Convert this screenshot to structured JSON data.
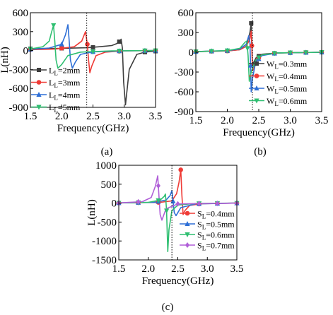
{
  "panel_labels": [
    "(a)",
    "(b)",
    "(c)"
  ],
  "chart_data": [
    {
      "type": "line",
      "panel": "(a)",
      "xlabel": "Frequency(GHz)",
      "ylabel": "L(nH)",
      "xlim": [
        1.5,
        3.5
      ],
      "ylim": [
        -900,
        600
      ],
      "xticks": [
        1.5,
        2.0,
        2.5,
        3.0,
        3.5
      ],
      "yticks": [
        600,
        300,
        0,
        -300,
        -600,
        -900
      ],
      "xtick_labels": [
        "1.5",
        "2.0",
        "2.5",
        "3.0",
        "3.5"
      ],
      "ytick_labels": [
        "600",
        "300",
        "0",
        "-300",
        "-600",
        "-900"
      ],
      "reference_line_x": 2.4,
      "grid": false,
      "legend_position": "bottom-left",
      "series": [
        {
          "name": "L=2mm",
          "name_main": "L",
          "name_sub": "L",
          "name_rest": "=2mm",
          "color": "#3d3d3d",
          "marker": "square",
          "x": [
            1.5,
            2.0,
            2.4,
            2.6,
            2.8,
            2.88,
            2.93,
            2.95,
            2.97,
            2.99,
            3.02,
            3.08,
            3.2,
            3.35,
            3.5
          ],
          "y": [
            30,
            35,
            45,
            60,
            80,
            110,
            150,
            180,
            40,
            -500,
            -860,
            -300,
            -60,
            -20,
            -10
          ],
          "markers_x": [
            1.5,
            2.0,
            2.5,
            2.92,
            3.33,
            3.5
          ]
        },
        {
          "name": "L=3mm",
          "name_main": "L",
          "name_sub": "L",
          "name_rest": "=3mm",
          "color": "#ef3b36",
          "marker": "circle",
          "x": [
            1.5,
            1.9,
            2.2,
            2.32,
            2.38,
            2.41,
            2.43,
            2.45,
            2.48,
            2.55,
            2.7,
            3.0,
            3.5
          ],
          "y": [
            15,
            25,
            60,
            150,
            300,
            100,
            -150,
            -350,
            -250,
            -80,
            -25,
            -5,
            0
          ],
          "markers_x": [
            1.5,
            2.0,
            2.41,
            2.92,
            3.33,
            3.5
          ]
        },
        {
          "name": "L=4mm",
          "name_main": "L",
          "name_sub": "L",
          "name_rest": "=4mm",
          "color": "#2e6fd6",
          "marker": "triangle",
          "x": [
            1.5,
            1.8,
            2.0,
            2.06,
            2.1,
            2.12,
            2.14,
            2.17,
            2.22,
            2.3,
            2.5,
            3.0,
            3.5
          ],
          "y": [
            20,
            40,
            100,
            250,
            410,
            150,
            -150,
            -280,
            -180,
            -60,
            -20,
            -5,
            0
          ],
          "markers_x": [
            1.5,
            2.0,
            2.5,
            2.92,
            3.33,
            3.5
          ]
        },
        {
          "name": "L=5mm",
          "name_main": "L",
          "name_sub": "L",
          "name_rest": "=5mm",
          "color": "#2fbf71",
          "marker": "triangle-down",
          "x": [
            1.5,
            1.7,
            1.8,
            1.84,
            1.87,
            1.89,
            1.91,
            1.94,
            2.0,
            2.1,
            2.3,
            2.8,
            3.5
          ],
          "y": [
            25,
            60,
            150,
            300,
            400,
            150,
            -150,
            -280,
            -220,
            -80,
            -25,
            -5,
            0
          ],
          "markers_x": [
            1.5,
            1.87,
            2.5,
            2.92,
            3.33,
            3.5
          ]
        }
      ]
    },
    {
      "type": "line",
      "panel": "(b)",
      "xlabel": "Frequency(GHz)",
      "ylabel": "",
      "xlim": [
        1.5,
        3.5
      ],
      "ylim": [
        -900,
        600
      ],
      "xticks": [
        1.5,
        2.0,
        2.5,
        3.0,
        3.5
      ],
      "yticks": [
        600,
        300,
        0,
        -300,
        -600,
        -900
      ],
      "xtick_labels": [
        "1.5",
        "2.0",
        "2.5",
        "3.0",
        "3.5"
      ],
      "ytick_labels": [
        "600",
        "300",
        "0",
        "-300",
        "-600",
        "-900"
      ],
      "reference_line_x": 2.4,
      "grid": false,
      "legend_position": "bottom-right",
      "series": [
        {
          "name": "W=0.3mm",
          "name_main": "W",
          "name_sub": "L",
          "name_rest": "=0.3mm",
          "color": "#3d3d3d",
          "marker": "square",
          "x": [
            1.5,
            2.0,
            2.2,
            2.3,
            2.36,
            2.38,
            2.39,
            2.4,
            2.42,
            2.46,
            2.55,
            2.8,
            3.5
          ],
          "y": [
            10,
            20,
            40,
            90,
            300,
            440,
            100,
            -200,
            -150,
            -80,
            -30,
            -10,
            0
          ],
          "markers_x": [
            1.5,
            1.75,
            2.0,
            2.38,
            2.5,
            2.75,
            3.0,
            3.25,
            3.5
          ]
        },
        {
          "name": "W=0.4mm",
          "name_main": "W",
          "name_sub": "L",
          "name_rest": "=0.4mm",
          "color": "#ef3b36",
          "marker": "circle",
          "x": [
            1.5,
            2.0,
            2.2,
            2.3,
            2.36,
            2.38,
            2.39,
            2.4,
            2.42,
            2.46,
            2.55,
            2.8,
            3.5
          ],
          "y": [
            10,
            20,
            40,
            90,
            200,
            320,
            100,
            -280,
            -250,
            -120,
            -40,
            -10,
            0
          ],
          "markers_x": [
            1.5,
            1.75,
            2.0,
            2.39,
            2.5,
            2.75,
            3.0,
            3.25,
            3.5
          ]
        },
        {
          "name": "W=0.5mm",
          "name_main": "W",
          "name_sub": "L",
          "name_rest": "=0.5mm",
          "color": "#2e6fd6",
          "marker": "triangle",
          "x": [
            1.5,
            2.0,
            2.2,
            2.3,
            2.34,
            2.36,
            2.37,
            2.38,
            2.4,
            2.45,
            2.55,
            2.8,
            3.5
          ],
          "y": [
            10,
            25,
            50,
            120,
            250,
            150,
            -200,
            -600,
            -400,
            -150,
            -50,
            -10,
            0
          ],
          "markers_x": [
            1.5,
            1.75,
            2.0,
            2.37,
            2.5,
            2.75,
            3.0,
            3.25,
            3.5
          ]
        },
        {
          "name": "W=0.6mm",
          "name_main": "W",
          "name_sub": "L",
          "name_rest": "=0.6mm",
          "color": "#2fbf71",
          "marker": "triangle-down",
          "x": [
            1.5,
            2.0,
            2.2,
            2.28,
            2.31,
            2.33,
            2.35,
            2.38,
            2.45,
            2.55,
            2.8,
            3.5
          ],
          "y": [
            10,
            25,
            60,
            150,
            170,
            -50,
            -440,
            -300,
            -120,
            -40,
            -10,
            0
          ],
          "markers_x": [
            1.5,
            1.75,
            2.0,
            2.32,
            2.5,
            2.75,
            3.0,
            3.25,
            3.5
          ]
        }
      ]
    },
    {
      "type": "line",
      "panel": "(c)",
      "xlabel": "Frequency(GHz)",
      "ylabel": "L(nH)",
      "xlim": [
        1.5,
        3.5
      ],
      "ylim": [
        -1500,
        1000
      ],
      "xticks": [
        1.5,
        2.0,
        2.5,
        3.0,
        3.5
      ],
      "yticks": [
        1000,
        500,
        0,
        -500,
        -1000,
        -1500
      ],
      "xtick_labels": [
        "1.5",
        "2.0",
        "2.5",
        "3.0",
        "3.5"
      ],
      "ytick_labels": [
        "1000",
        "500",
        "0",
        "-500",
        "-1000",
        "-1500"
      ],
      "reference_line_x": 2.4,
      "grid": false,
      "legend_position": "bottom-right",
      "series": [
        {
          "name": "S=0.4mm",
          "name_main": "S",
          "name_sub": "L",
          "name_rest": "=0.4mm",
          "color": "#ef3b36",
          "marker": "circle",
          "x": [
            1.5,
            2.2,
            2.4,
            2.48,
            2.52,
            2.55,
            2.57,
            2.59,
            2.62,
            2.7,
            2.9,
            3.5
          ],
          "y": [
            5,
            20,
            60,
            250,
            550,
            880,
            200,
            -300,
            -200,
            -60,
            -15,
            0
          ],
          "markers_x": [
            1.5,
            1.83,
            2.17,
            2.55,
            2.86,
            3.17,
            3.5
          ]
        },
        {
          "name": "S=0.5mm",
          "name_main": "S",
          "name_sub": "L",
          "name_rest": "=0.5mm",
          "color": "#2e6fd6",
          "marker": "triangle",
          "x": [
            1.5,
            2.1,
            2.3,
            2.37,
            2.4,
            2.42,
            2.44,
            2.47,
            2.55,
            2.8,
            3.5
          ],
          "y": [
            5,
            20,
            80,
            200,
            330,
            50,
            -250,
            -330,
            -120,
            -20,
            0
          ],
          "markers_x": [
            1.5,
            1.83,
            2.17,
            2.42,
            2.86,
            3.17,
            3.5
          ]
        },
        {
          "name": "S=0.6mm",
          "name_main": "S",
          "name_sub": "L",
          "name_rest": "=0.6mm",
          "color": "#2fbf71",
          "marker": "triangle-down",
          "x": [
            1.5,
            2.0,
            2.2,
            2.27,
            2.29,
            2.31,
            2.33,
            2.35,
            2.4,
            2.5,
            2.8,
            3.5
          ],
          "y": [
            5,
            20,
            80,
            180,
            240,
            -200,
            -1280,
            -700,
            -200,
            -50,
            -10,
            0
          ],
          "markers_x": [
            1.5,
            1.83,
            2.17,
            2.31,
            2.86,
            3.17,
            3.5
          ]
        },
        {
          "name": "S=0.7mm",
          "name_main": "S",
          "name_sub": "L",
          "name_rest": "=0.7mm",
          "color": "#b05fd8",
          "marker": "diamond",
          "x": [
            1.5,
            1.9,
            2.05,
            2.12,
            2.16,
            2.18,
            2.2,
            2.23,
            2.3,
            2.5,
            3.5
          ],
          "y": [
            5,
            40,
            150,
            450,
            720,
            200,
            -300,
            -450,
            -150,
            -20,
            0
          ],
          "markers_x": [
            1.5,
            1.83,
            2.17,
            2.5,
            2.86,
            3.17,
            3.5
          ]
        }
      ]
    }
  ]
}
